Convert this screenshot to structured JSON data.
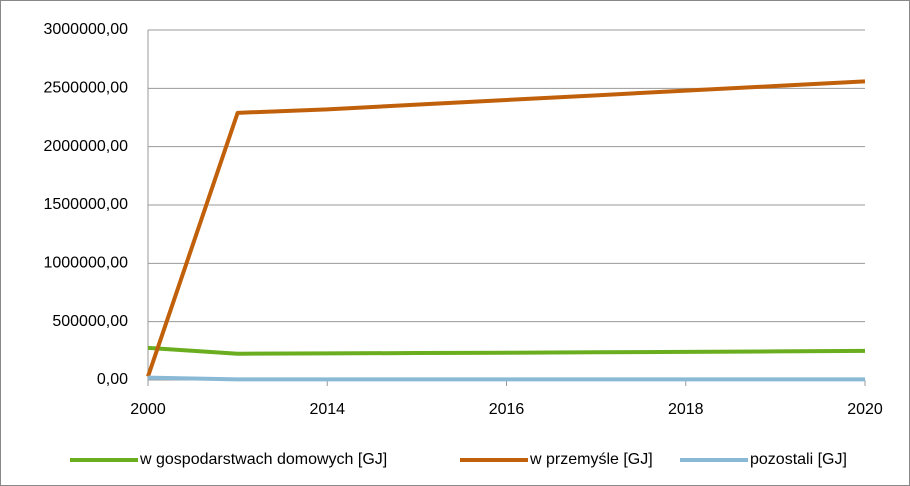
{
  "chart_data": {
    "type": "line",
    "categories": [
      "2000",
      null,
      "2014",
      null,
      "2016",
      null,
      "2018",
      null,
      "2020"
    ],
    "series": [
      {
        "name": "w gospodarstwach domowych [GJ]",
        "color": "#6aad1e",
        "values": [
          275000,
          225000,
          228000,
          231000,
          234000,
          238000,
          241000,
          245000,
          250000
        ]
      },
      {
        "name": "w przemyśle [GJ]",
        "color": "#c0600a",
        "values": [
          30000,
          2290000,
          2320000,
          2360000,
          2400000,
          2440000,
          2480000,
          2520000,
          2560000
        ]
      },
      {
        "name": "pozostali [GJ]",
        "color": "#8ab9d6",
        "values": [
          20000,
          5000,
          5000,
          5000,
          5000,
          5000,
          5000,
          5000,
          5000
        ]
      }
    ],
    "ylim": [
      0,
      3000000
    ],
    "yticks": [
      {
        "value": 0,
        "label": "0,00"
      },
      {
        "value": 500000,
        "label": "500000,00"
      },
      {
        "value": 1000000,
        "label": "1000000,00"
      },
      {
        "value": 1500000,
        "label": "1500000,00"
      },
      {
        "value": 2000000,
        "label": "2000000,00"
      },
      {
        "value": 2500000,
        "label": "2500000,00"
      },
      {
        "value": 3000000,
        "label": "3000000,00"
      }
    ],
    "grid": true,
    "legend": "bottom"
  }
}
